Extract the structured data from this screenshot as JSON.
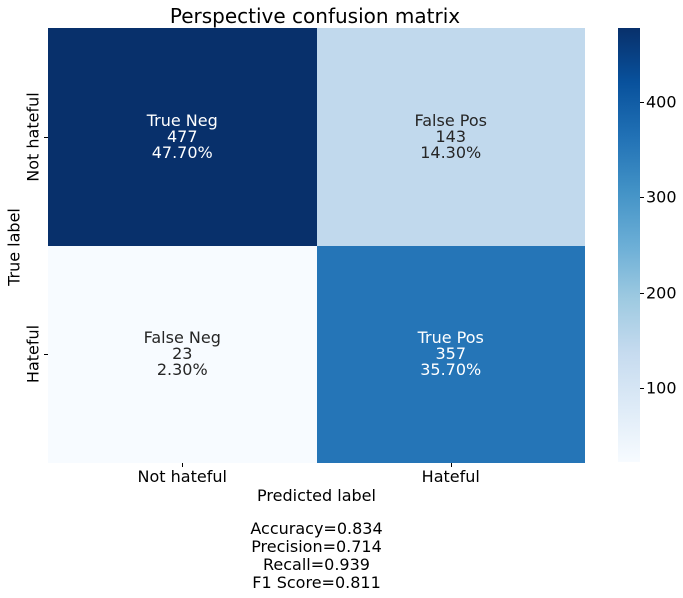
{
  "chart_data": {
    "type": "heatmap",
    "title": "Perspective confusion matrix",
    "xlabel": "Predicted label",
    "ylabel": "True label",
    "x_categories": [
      "Not hateful",
      "Hateful"
    ],
    "y_categories": [
      "Not hateful",
      "Hateful"
    ],
    "cells": [
      {
        "row": 0,
        "col": 0,
        "name": "True Neg",
        "value": 477,
        "percent": "47.70%"
      },
      {
        "row": 0,
        "col": 1,
        "name": "False Pos",
        "value": 143,
        "percent": "14.30%"
      },
      {
        "row": 1,
        "col": 0,
        "name": "False Neg",
        "value": 23,
        "percent": "2.30%"
      },
      {
        "row": 1,
        "col": 1,
        "name": "True Pos",
        "value": 357,
        "percent": "35.70%"
      }
    ],
    "colorbar": {
      "colormap": "Blues",
      "range": [
        23,
        477
      ],
      "ticks": [
        100,
        200,
        300,
        400
      ],
      "tick_labels": [
        "100",
        "200",
        "300",
        "400"
      ]
    },
    "metrics": [
      "Accuracy=0.834",
      "Precision=0.714",
      "Recall=0.939",
      "F1 Score=0.811"
    ]
  }
}
